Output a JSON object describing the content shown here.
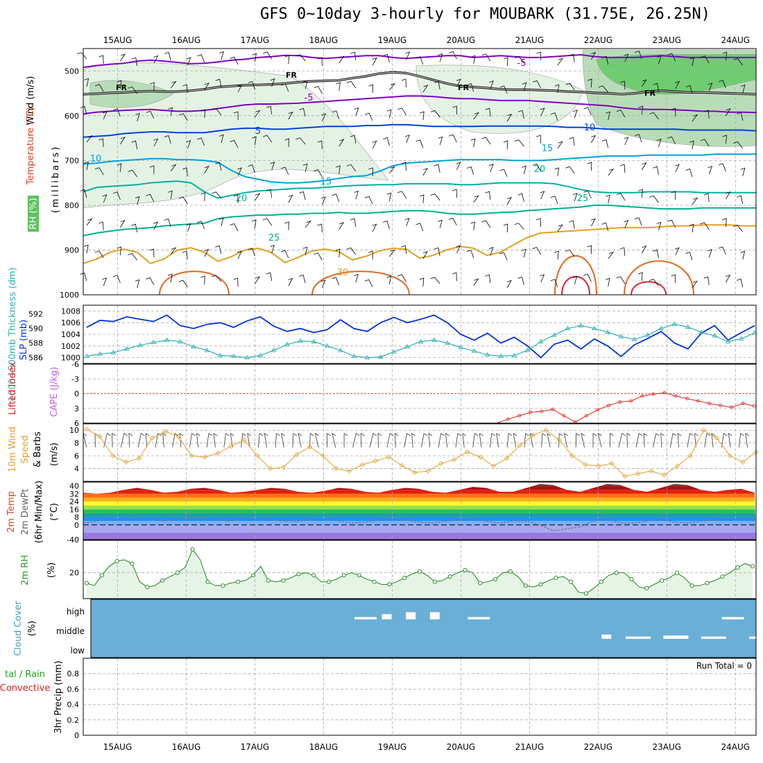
{
  "title": "GFS 0~10day 3-hourly for MOUBARK (31.75E, 26.25N)",
  "dates": [
    "15AUG",
    "16AUG",
    "17AUG",
    "18AUG",
    "19AUG",
    "20AUG",
    "21AUG",
    "22AUG",
    "23AUG",
    "24AUG"
  ],
  "chart_data": [
    {
      "type": "contour",
      "panel": "upper-air",
      "ylabel": "(millibars)",
      "yticks": [
        500,
        600,
        700,
        800,
        900,
        1000
      ],
      "ylim": [
        450,
        1000
      ],
      "legend_labels": [
        "Wind (m/s)",
        "Temperature (°C)",
        "RH (%)"
      ],
      "temperature_contour_labels": [
        "-5",
        "-5",
        "5",
        "10",
        "10",
        "15",
        "15",
        "20",
        "20",
        "25",
        "25",
        "30"
      ],
      "freezing_level_label": "FR",
      "isotherms": [
        {
          "level": -5,
          "color": "#8000c0",
          "pressure": [
            492,
            488,
            485,
            483,
            478,
            476,
            478,
            481,
            484,
            483,
            480,
            476,
            474,
            470,
            468,
            465,
            466,
            470,
            472,
            470,
            468,
            466,
            466,
            470,
            472,
            470,
            468,
            466,
            466,
            470,
            468,
            466,
            468,
            470,
            470,
            468,
            466,
            464,
            468,
            470,
            470,
            470,
            468,
            466,
            468,
            470,
            470,
            470,
            470,
            470,
            470
          ]
        },
        {
          "level": 0,
          "color": "#000000",
          "pressure": [
            552,
            551,
            549,
            548,
            546,
            545,
            546,
            546,
            544,
            541,
            536,
            534,
            532,
            531,
            530,
            528,
            525,
            523,
            522,
            521,
            516,
            512,
            506,
            503,
            505,
            512,
            520,
            528,
            534,
            536,
            538,
            541,
            542,
            542,
            543,
            544,
            546,
            547,
            549,
            550,
            552,
            550,
            546,
            544,
            546,
            548,
            548,
            549,
            550,
            551,
            552
          ]
        },
        {
          "level": 5,
          "color": "#8000c0",
          "pressure": [
            596,
            592,
            590,
            588,
            587,
            586,
            588,
            590,
            590,
            588,
            584,
            580,
            576,
            574,
            574,
            573,
            572,
            570,
            568,
            566,
            564,
            562,
            560,
            558,
            556,
            556,
            557,
            560,
            562,
            562,
            564,
            566,
            566,
            566,
            568,
            570,
            572,
            574,
            576,
            578,
            582,
            585,
            586,
            586,
            587,
            588,
            590,
            590,
            592,
            592,
            593
          ]
        },
        {
          "level": 10,
          "color": "#0040e0",
          "pressure": [
            648,
            646,
            644,
            640,
            638,
            636,
            636,
            638,
            638,
            638,
            634,
            630,
            628,
            628,
            630,
            630,
            628,
            626,
            624,
            624,
            624,
            622,
            622,
            620,
            620,
            622,
            624,
            624,
            624,
            624,
            623,
            623,
            623,
            623,
            623,
            624,
            626,
            626,
            628,
            630,
            630,
            630,
            630,
            630,
            630,
            632,
            632,
            632,
            632,
            632,
            634
          ]
        },
        {
          "level": 15,
          "color": "#00a0e0",
          "pressure": [
            708,
            706,
            702,
            700,
            698,
            696,
            696,
            698,
            698,
            700,
            704,
            722,
            736,
            742,
            748,
            750,
            750,
            748,
            745,
            740,
            736,
            734,
            724,
            712,
            706,
            704,
            702,
            700,
            698,
            698,
            698,
            698,
            700,
            700,
            700,
            698,
            696,
            694,
            692,
            690,
            690,
            690,
            688,
            688,
            688,
            688,
            688,
            686,
            686,
            686,
            686
          ]
        },
        {
          "level": 20,
          "color": "#00b0a0",
          "pressure": [
            770,
            760,
            758,
            756,
            754,
            750,
            748,
            746,
            750,
            770,
            784,
            778,
            772,
            768,
            766,
            764,
            762,
            762,
            760,
            758,
            756,
            755,
            754,
            754,
            752,
            752,
            752,
            752,
            754,
            754,
            752,
            750,
            750,
            750,
            750,
            752,
            758,
            765,
            770,
            772,
            772,
            772,
            770,
            770,
            770,
            770,
            772,
            772,
            772,
            772,
            772
          ]
        },
        {
          "level": 25,
          "color": "#00b090",
          "pressure": [
            868,
            862,
            858,
            854,
            852,
            850,
            846,
            844,
            842,
            840,
            830,
            826,
            824,
            822,
            822,
            820,
            820,
            818,
            818,
            816,
            818,
            818,
            816,
            814,
            812,
            812,
            814,
            818,
            820,
            820,
            818,
            816,
            815,
            812,
            810,
            808,
            806,
            804,
            800,
            800,
            802,
            804,
            806,
            808,
            808,
            808,
            806,
            806,
            806,
            806,
            806
          ]
        },
        {
          "level": 30,
          "color": "#e0a020",
          "pressure": [
            930,
            920,
            905,
            898,
            905,
            930,
            920,
            900,
            895,
            905,
            925,
            915,
            900,
            896,
            906,
            928,
            916,
            902,
            898,
            904,
            922,
            914,
            902,
            896,
            898,
            918,
            912,
            900,
            892,
            896,
            912,
            905,
            888,
            872,
            862,
            860,
            858,
            856,
            854,
            852,
            850,
            850,
            850,
            848,
            846,
            846,
            844,
            844,
            844,
            846,
            846
          ]
        }
      ],
      "rh_shading": [
        {
          "level": 50,
          "color": "#e4f2e4"
        },
        {
          "level": 70,
          "color": "#b8dcb8"
        },
        {
          "level": 90,
          "color": "#70cc70"
        }
      ]
    },
    {
      "type": "line",
      "panel": "slp-thickness",
      "left_label": "1000~500mb Thickness (dm)",
      "right_label": "SLP (mb)",
      "left_ticks": [
        586,
        588,
        590,
        592
      ],
      "right_ticks": [
        1000,
        1002,
        1004,
        1006,
        1008
      ],
      "series": [
        {
          "name": "SLP (mb)",
          "color": "#0030e0",
          "values": [
            1005.2,
            1006.4,
            1006.2,
            1007.0,
            1006.6,
            1006.2,
            1007.3,
            1005.5,
            1005.0,
            1005.7,
            1006.0,
            1005.2,
            1006.3,
            1007.0,
            1005.4,
            1004.5,
            1005.0,
            1004.3,
            1004.8,
            1006.5,
            1005.0,
            1004.5,
            1006.0,
            1006.9,
            1006.0,
            1006.6,
            1007.3,
            1006.0,
            1004.0,
            1003.0,
            1004.2,
            1002.5,
            1003.5,
            1002.0,
            1000.0,
            1002.3,
            1003.0,
            1001.5,
            1003.2,
            1002.0,
            1000.2,
            1002.2,
            1003.3,
            1004.5,
            1002.5,
            1001.5,
            1004.2,
            1005.5,
            1003.0,
            1004.3,
            1005.5
          ]
        },
        {
          "name": "Thickness (dm)",
          "color": "#30b0b0",
          "values": [
            586.2,
            586.5,
            586.7,
            587.2,
            587.7,
            588.1,
            588.4,
            588.2,
            587.5,
            587.0,
            586.3,
            586.2,
            586.0,
            586.3,
            587.0,
            587.8,
            588.3,
            588.2,
            587.6,
            587.0,
            586.2,
            586.0,
            586.1,
            586.8,
            587.5,
            588.2,
            588.4,
            588.0,
            587.4,
            586.9,
            586.4,
            586.2,
            586.3,
            587.0,
            588.2,
            589.1,
            590.0,
            590.4,
            590.0,
            589.5,
            588.9,
            588.5,
            589.1,
            590.0,
            590.6,
            590.2,
            589.5,
            589.0,
            588.2,
            588.6,
            589.4
          ]
        }
      ]
    },
    {
      "type": "line",
      "panel": "cape-lifted-index",
      "left_label": "Lifted Index",
      "right_label": "CAPE (J/kg)",
      "yticks": [
        6,
        3,
        0,
        -3,
        -6
      ],
      "ylim": [
        -6,
        6
      ],
      "series": [
        {
          "name": "Lifted Index",
          "color": "#e02020",
          "values": [
            6,
            6.6,
            7,
            7.2,
            7.5,
            7.3,
            7.2,
            7.5,
            7.6,
            7.4,
            7.3,
            7.5,
            7.6,
            7.3,
            7.2,
            7.4,
            7.6,
            7.3,
            7.2,
            7.5,
            7.6,
            7.3,
            7.2,
            7.4,
            7.6,
            7.3,
            7.2,
            7.5,
            7.6,
            7.3,
            7.2,
            7.5,
            6.8,
            6.3,
            6.6,
            7.0,
            6.8,
            6.2,
            5.2,
            4.5,
            3.8,
            3.6,
            3.2,
            4.5,
            5.8,
            4.5,
            3.3,
            2.4,
            1.7,
            1.5,
            0.5,
            0.1,
            -0.2,
            0.5,
            1.0,
            1.5,
            2.0,
            2.4,
            2.8,
            2.0,
            2.5
          ]
        }
      ]
    },
    {
      "type": "line",
      "panel": "10m-wind",
      "ylabel": "(m/s)",
      "left_label": "10m Wind Speed & Barbs",
      "yticks": [
        4,
        6,
        8,
        10
      ],
      "ylim": [
        2,
        11
      ],
      "series": [
        {
          "name": "10m Wind Speed",
          "color": "#e0a030",
          "values": [
            10.2,
            9.0,
            6.0,
            5.0,
            5.6,
            8.8,
            9.8,
            9.0,
            6.0,
            5.8,
            6.4,
            7.5,
            8.5,
            6.0,
            4.0,
            4.2,
            6.2,
            7.4,
            6.0,
            4.0,
            3.6,
            4.6,
            5.2,
            5.8,
            4.5,
            3.4,
            3.6,
            4.8,
            5.4,
            6.6,
            5.8,
            4.4,
            5.6,
            7.6,
            9.2,
            10.0,
            8.5,
            6.0,
            4.6,
            4.4,
            4.8,
            2.8,
            3.2,
            3.6,
            3.0,
            4.4,
            6.0,
            10.0,
            8.8,
            6.0,
            5.0,
            6.6
          ]
        }
      ]
    },
    {
      "type": "area",
      "panel": "2m-temp",
      "left_label": "2m Temp 2m DewPt (6hr Min/Max)",
      "ylabel": "(°C)",
      "yticks": [
        -40,
        0,
        8,
        16,
        24,
        32,
        40
      ],
      "ylim": [
        -40,
        44
      ],
      "series": [
        {
          "name": "2m Temp max",
          "color": "#7a4a3a",
          "values": [
            33,
            32,
            33,
            36,
            38,
            36,
            33,
            34,
            37,
            38,
            36,
            33,
            34,
            36,
            38,
            37,
            34,
            33,
            35,
            38,
            37,
            34,
            33,
            36,
            38,
            37,
            34,
            33,
            36,
            39,
            38,
            34,
            34,
            38,
            42,
            41,
            36,
            34,
            38,
            42,
            41,
            36,
            34,
            38,
            42,
            41,
            36,
            34,
            36,
            37,
            33
          ]
        },
        {
          "name": "2m DewPt",
          "color": "#777777",
          "values": [
            2,
            4,
            6,
            5,
            6,
            6,
            4,
            6,
            8,
            7,
            5,
            4,
            6,
            6,
            5,
            4,
            4,
            5,
            6,
            4,
            2,
            3,
            5,
            6,
            5,
            3,
            2,
            4,
            5,
            6,
            4,
            2,
            4,
            4,
            0,
            -6,
            -4,
            -2,
            4,
            6,
            2,
            2,
            4,
            6,
            3,
            2,
            4,
            5,
            6,
            6,
            6
          ]
        }
      ]
    },
    {
      "type": "area",
      "panel": "2m-rh",
      "left_label": "2m RH",
      "ylabel": "(%)",
      "yticks": [
        20
      ],
      "ylim": [
        0,
        45
      ],
      "series": [
        {
          "name": "2m RH",
          "color": "#208020",
          "values": [
            12,
            10,
            18,
            25,
            29,
            30,
            27,
            13,
            9,
            10,
            14,
            17,
            20,
            24,
            38,
            30,
            13,
            10,
            10,
            12,
            13,
            14,
            18,
            25,
            14,
            13,
            14,
            16,
            19,
            20,
            18,
            13,
            13,
            15,
            18,
            20,
            18,
            15,
            13,
            11,
            11,
            13,
            16,
            19,
            21,
            18,
            13,
            14,
            17,
            20,
            22,
            20,
            12,
            13,
            15,
            20,
            21,
            17,
            10,
            9,
            11,
            14,
            16,
            17,
            13,
            5,
            4,
            8,
            13,
            18,
            20,
            20,
            15,
            9,
            8,
            11,
            14,
            16,
            20,
            16,
            10,
            10,
            12,
            14,
            17,
            20,
            24,
            27,
            25
          ]
        }
      ]
    },
    {
      "type": "bar",
      "panel": "cloud-cover",
      "left_label": "Cloud Cover",
      "ylabel": "(%)",
      "levels": [
        "high",
        "middle",
        "low"
      ],
      "high_bars": [
        {
          "day": 18.45,
          "value": 0.1
        },
        {
          "day": 18.85,
          "value": 0.4
        },
        {
          "day": 19.2,
          "value": 0.6
        },
        {
          "day": 19.55,
          "value": 0.6
        },
        {
          "day": 20.1,
          "value": 0.1
        },
        {
          "day": 23.8,
          "value": 0.1
        }
      ],
      "middle_bars": [
        {
          "day": 22.05,
          "value": 0.3
        },
        {
          "day": 22.4,
          "value": 0.1
        },
        {
          "day": 22.95,
          "value": 0.2
        },
        {
          "day": 23.5,
          "value": 0.1
        },
        {
          "day": 24.2,
          "value": 0.1
        }
      ]
    },
    {
      "type": "bar",
      "panel": "precip",
      "left_label": "Total / Rain Convective",
      "ylabel": "3hr Precip (mm)",
      "yticks": [
        0,
        0.2,
        0.4,
        0.6,
        0.8
      ],
      "ylim": [
        0,
        1
      ],
      "run_total": "Run Total = 0",
      "values": []
    }
  ]
}
